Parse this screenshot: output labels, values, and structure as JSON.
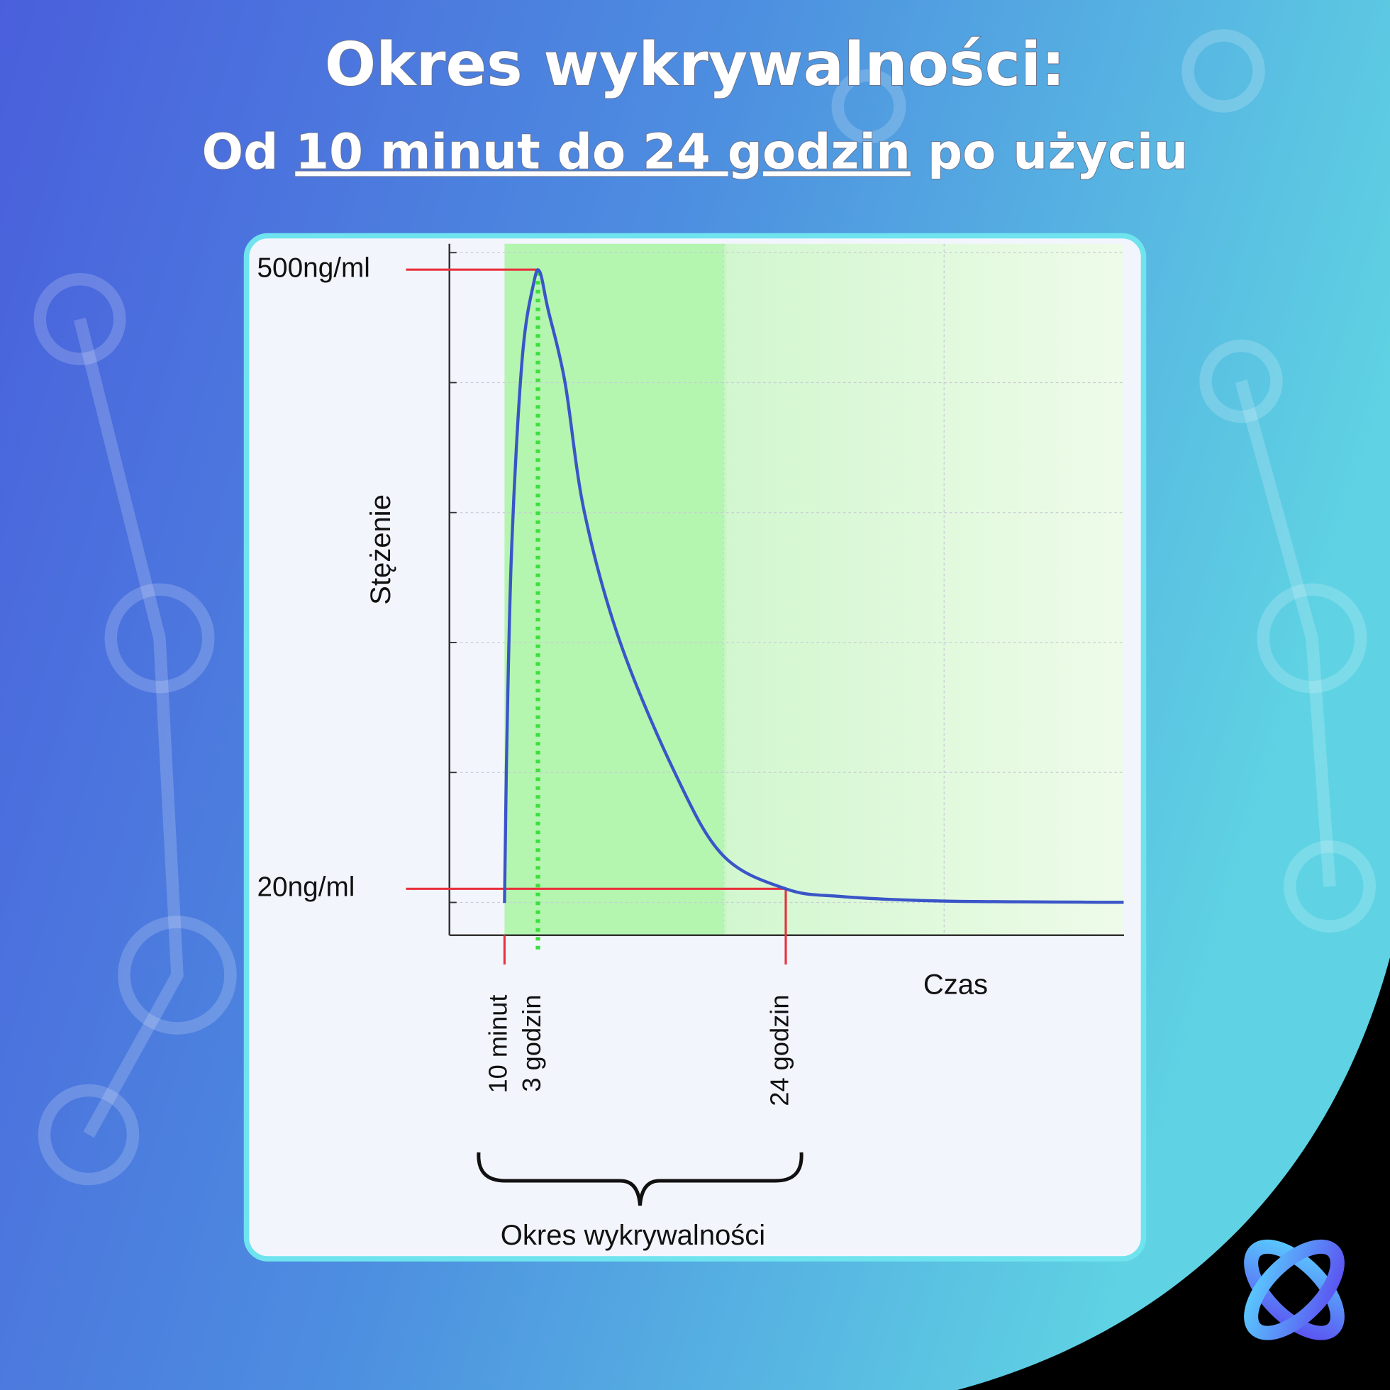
{
  "chart_data": {
    "type": "line",
    "title": "Okres wykrywalności:",
    "subtitle": [
      "Od",
      "10 minut do 24 godzin",
      "po użyciu"
    ],
    "y_label": "Stężenie",
    "x_label": "Czas",
    "period_label": "Okres wykrywalności",
    "x": [
      10,
      19,
      46,
      100,
      159,
      190,
      230,
      317,
      416,
      596,
      876,
      1120,
      1440,
      1724,
      2243,
      3158
    ],
    "series": [
      {
        "color": "#3a55c8",
        "values": [
          9,
          110,
          283,
          431,
          490,
          498,
          470,
          413,
          312,
          212,
          110,
          46,
          20,
          14,
          10.5,
          9.5
        ]
      }
    ],
    "xlim": [
      -270,
      3160
    ],
    "ylim": [
      -16,
      520
    ],
    "xticks": [
      {
        "value": 10,
        "label": "10 minut"
      },
      {
        "value": 180,
        "label": "3 godzin"
      },
      {
        "value": 1440,
        "label": "24 godzin"
      }
    ],
    "yticks": [
      {
        "value": 500,
        "label": "500ng/ml"
      },
      {
        "value": 20,
        "label": "20ng/ml"
      }
    ]
  }
}
